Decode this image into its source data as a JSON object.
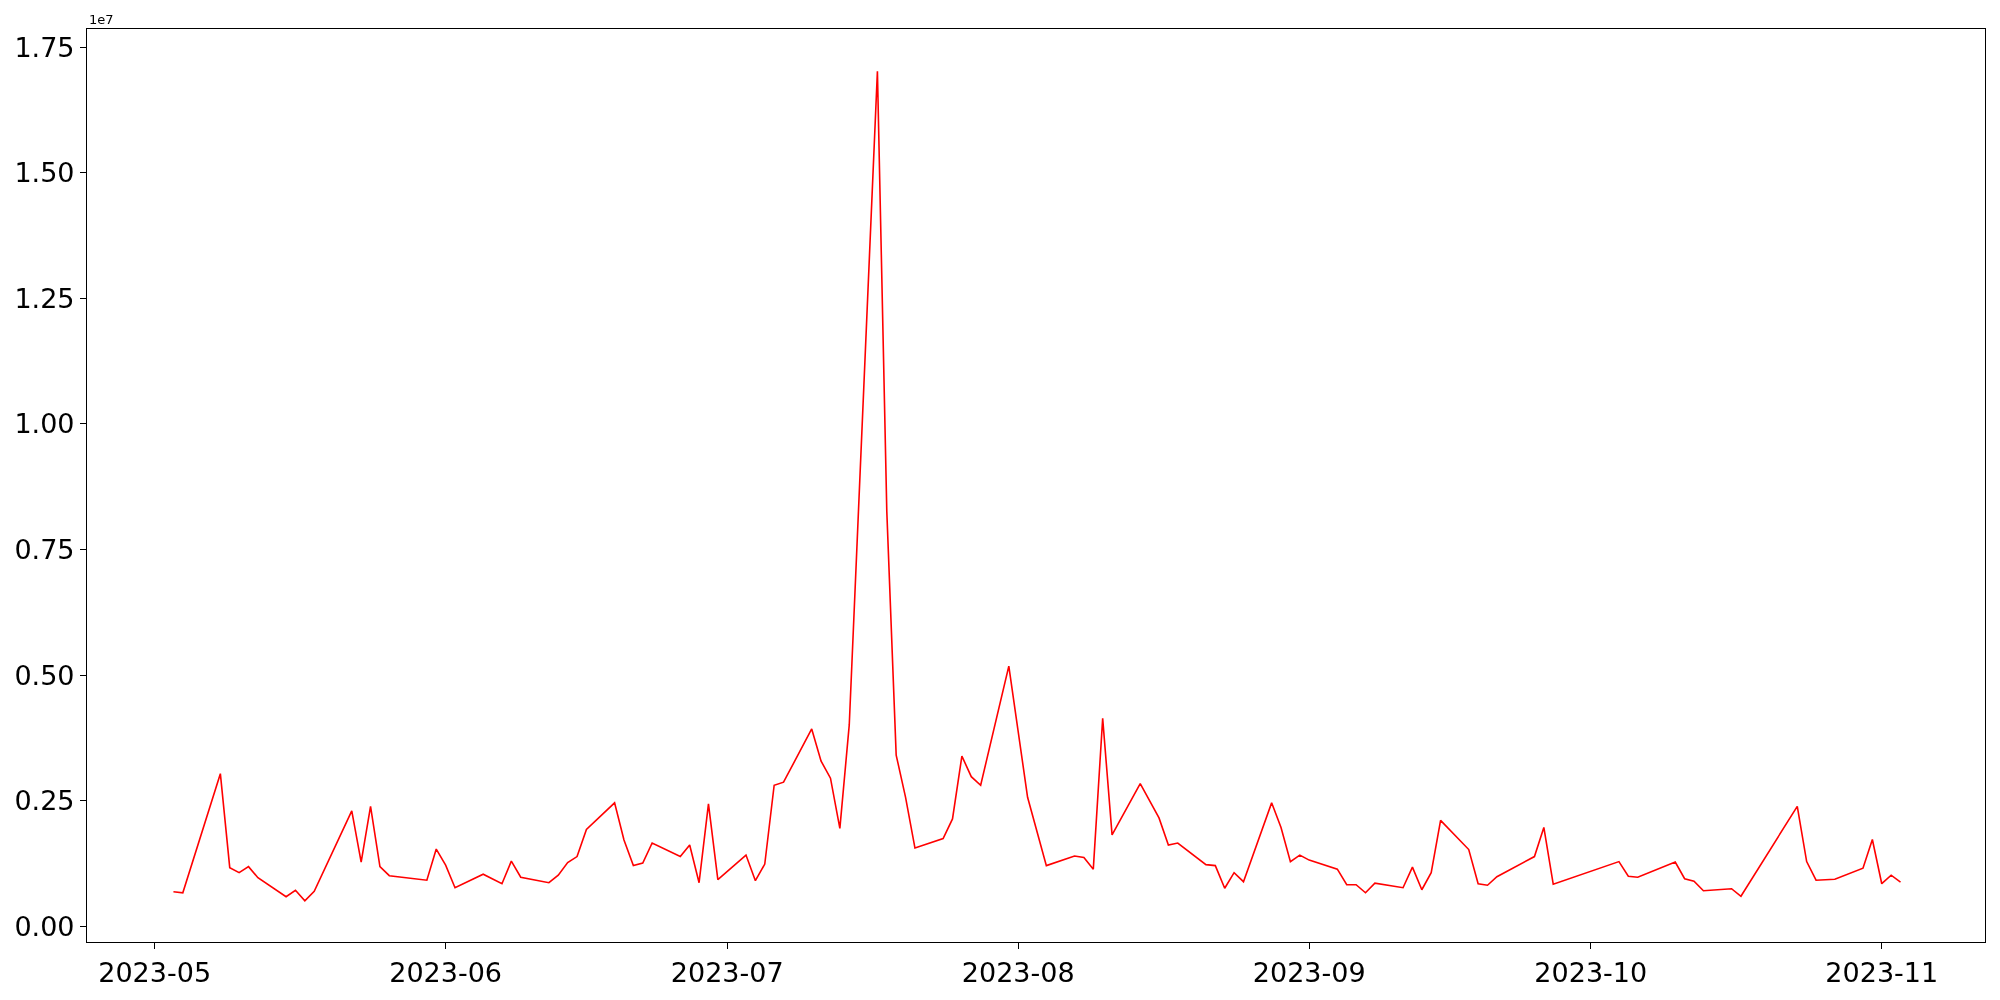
{
  "chart_data": {
    "type": "line",
    "x": [
      "2023-05-03",
      "2023-05-04",
      "2023-05-08",
      "2023-05-09",
      "2023-05-10",
      "2023-05-11",
      "2023-05-12",
      "2023-05-15",
      "2023-05-16",
      "2023-05-17",
      "2023-05-18",
      "2023-05-22",
      "2023-05-23",
      "2023-05-24",
      "2023-05-25",
      "2023-05-26",
      "2023-05-30",
      "2023-05-31",
      "2023-06-01",
      "2023-06-02",
      "2023-06-05",
      "2023-06-07",
      "2023-06-08",
      "2023-06-09",
      "2023-06-12",
      "2023-06-13",
      "2023-06-14",
      "2023-06-15",
      "2023-06-16",
      "2023-06-19",
      "2023-06-20",
      "2023-06-21",
      "2023-06-22",
      "2023-06-23",
      "2023-06-26",
      "2023-06-27",
      "2023-06-28",
      "2023-06-29",
      "2023-06-30",
      "2023-07-03",
      "2023-07-04",
      "2023-07-05",
      "2023-07-06",
      "2023-07-07",
      "2023-07-10",
      "2023-07-11",
      "2023-07-12",
      "2023-07-13",
      "2023-07-14",
      "2023-07-17",
      "2023-07-18",
      "2023-07-19",
      "2023-07-20",
      "2023-07-21",
      "2023-07-24",
      "2023-07-25",
      "2023-07-26",
      "2023-07-27",
      "2023-07-28",
      "2023-07-31",
      "2023-08-02",
      "2023-08-04",
      "2023-08-07",
      "2023-08-08",
      "2023-08-09",
      "2023-08-10",
      "2023-08-11",
      "2023-08-14",
      "2023-08-16",
      "2023-08-17",
      "2023-08-18",
      "2023-08-21",
      "2023-08-22",
      "2023-08-23",
      "2023-08-24",
      "2023-08-25",
      "2023-08-28",
      "2023-08-29",
      "2023-08-30",
      "2023-08-31",
      "2023-09-01",
      "2023-09-04",
      "2023-09-05",
      "2023-09-06",
      "2023-09-07",
      "2023-09-08",
      "2023-09-11",
      "2023-09-12",
      "2023-09-13",
      "2023-09-14",
      "2023-09-15",
      "2023-09-18",
      "2023-09-19",
      "2023-09-20",
      "2023-09-21",
      "2023-09-25",
      "2023-09-26",
      "2023-09-27",
      "2023-10-04",
      "2023-10-05",
      "2023-10-06",
      "2023-10-10",
      "2023-10-11",
      "2023-10-12",
      "2023-10-13",
      "2023-10-16",
      "2023-10-17",
      "2023-10-23",
      "2023-10-24",
      "2023-10-25",
      "2023-10-27",
      "2023-10-30",
      "2023-10-31",
      "2023-11-01",
      "2023-11-02",
      "2023-11-03"
    ],
    "series": [
      {
        "color": "#ff0000",
        "values": [
          0.069,
          0.067,
          0.304,
          0.117,
          0.107,
          0.119,
          0.097,
          0.059,
          0.072,
          0.051,
          0.07,
          0.23,
          0.128,
          0.239,
          0.119,
          0.101,
          0.092,
          0.154,
          0.122,
          0.077,
          0.104,
          0.085,
          0.13,
          0.098,
          0.087,
          0.102,
          0.127,
          0.139,
          0.193,
          0.246,
          0.172,
          0.121,
          0.126,
          0.166,
          0.139,
          0.162,
          0.087,
          0.244,
          0.093,
          0.142,
          0.091,
          0.124,
          0.281,
          0.287,
          0.393,
          0.329,
          0.295,
          0.195,
          0.401,
          1.702,
          0.826,
          0.341,
          0.257,
          0.156,
          0.175,
          0.214,
          0.339,
          0.298,
          0.281,
          0.518,
          0.257,
          0.121,
          0.14,
          0.137,
          0.114,
          0.414,
          0.182,
          0.284,
          0.216,
          0.162,
          0.166,
          0.123,
          0.121,
          0.076,
          0.107,
          0.089,
          0.246,
          0.197,
          0.129,
          0.142,
          0.132,
          0.114,
          0.083,
          0.083,
          0.067,
          0.086,
          0.077,
          0.118,
          0.073,
          0.107,
          0.211,
          0.153,
          0.085,
          0.082,
          0.099,
          0.139,
          0.197,
          0.084,
          0.129,
          0.1,
          0.098,
          0.128,
          0.095,
          0.09,
          0.071,
          0.075,
          0.06,
          0.239,
          0.129,
          0.092,
          0.094,
          0.116,
          0.173,
          0.085,
          0.102,
          0.088
        ]
      }
    ],
    "xlim": [
      "2023-04-23T19:00",
      "2023-11-12"
    ],
    "xticks": [
      "2023-05",
      "2023-06",
      "2023-07",
      "2023-08",
      "2023-09",
      "2023-10",
      "2023-11"
    ],
    "ylim": [
      -0.031,
      1.786
    ],
    "yticks": [
      {
        "value": 0,
        "label": "0.00"
      },
      {
        "value": 0.25,
        "label": "0.25"
      },
      {
        "value": 0.5,
        "label": "0.50"
      },
      {
        "value": 0.75,
        "label": "0.75"
      },
      {
        "value": 1.0,
        "label": "1.00"
      },
      {
        "value": 1.25,
        "label": "1.25"
      },
      {
        "value": 1.5,
        "label": "1.50"
      },
      {
        "value": 1.75,
        "label": "1.75"
      }
    ],
    "annotations": [
      "1e7"
    ],
    "marker": "none",
    "line_style": "solid"
  }
}
